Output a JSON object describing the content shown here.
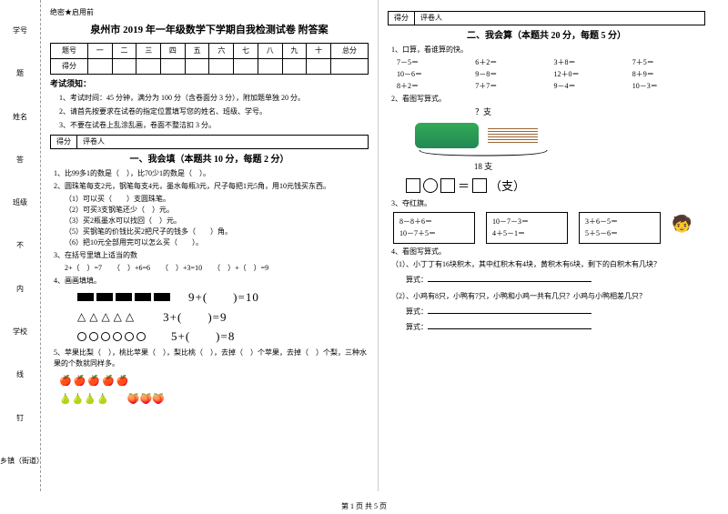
{
  "binding": {
    "xuehao": "学号",
    "xingming": "姓名",
    "banji": "班级",
    "xuexiao": "学校",
    "xiangzhen": "乡镇（街道）",
    "nei": "内",
    "xian": "线",
    "ding": "钉",
    "ti": "题",
    "da": "答",
    "bu": "不"
  },
  "secret": "绝密★启用前",
  "title": "泉州市 2019 年一年级数学下学期自我检测试卷 附答案",
  "score_headers": [
    "题号",
    "一",
    "二",
    "三",
    "四",
    "五",
    "六",
    "七",
    "八",
    "九",
    "十",
    "总分"
  ],
  "score_row": "得分",
  "notice_h": "考试须知：",
  "notices": [
    "1、考试时间：45 分钟，满分为 100 分（含卷面分 3 分），附加题单独 20 分。",
    "2、请首先按要求在试卷的指定位置填写您的姓名、班级、学号。",
    "3、不要在试卷上乱涂乱画，卷面不整洁扣 3 分。"
  ],
  "scorebox": {
    "a": "得分",
    "b": "评卷人"
  },
  "q1_h": "一、我会填（本题共 10 分，每题 2 分）",
  "q1_1": "1、比99多1的数是（　），比70少1的数是（　）。",
  "q1_2": "2、圆珠笔每支2元，钢笔每支4元，墨水每瓶3元，尺子每把1元5角，用10元钱买东西。",
  "q1_2s": [
    "（1）可以买（　　）支圆珠笔。",
    "（2）可买3支钢笔还少（　）元。",
    "（3）买2瓶墨水可以找回（　）元。",
    "（5）买钢笔的价钱比买2把尺子的钱多（　　）角。",
    "（6）把10元全部用完可以怎么买（　　）。"
  ],
  "q1_3": "3、在括号里填上适当的数",
  "q1_3e": "2+（　）=7　　（　）+6=6　　（　）+3=10　　（　）+（　）=9",
  "q1_4": "4、画画填填。",
  "eq1": "9+(　　)=10",
  "eq2": "3+(　　)=9",
  "eq3": "5+(　　)=8",
  "q1_5": "5、苹果比梨（　），桃比苹果（　），梨比桃（　），去掉（　）个苹果，去掉（　）个梨，三种水果的个数就同样多。",
  "q2_h": "二、我会算（本题共 20 分，每题 5 分）",
  "q2_1": "1、口算，看谁算的快。",
  "kousuan": [
    "7－5＝",
    "6＋2＝",
    "3＋8＝",
    "7＋5＝",
    "10－6＝",
    "9－8＝",
    "12＋0＝",
    "8＋9＝",
    "8＋2＝",
    "7＋7＝",
    "9－4＝",
    "10－3＝"
  ],
  "q2_2": "2、看图写算式。",
  "q2_2_top": "？支",
  "q2_2_bot": "18 支",
  "q2_2_unit": "（支）",
  "q2_3": "3、夺红旗。",
  "flag1": [
    "8－8＋6＝",
    "10－7＋5＝"
  ],
  "flag2": [
    "10－7－3＝",
    "4＋5－1＝"
  ],
  "flag3": [
    "3＋6－5＝",
    "5＋5－6＝"
  ],
  "q2_4": "4、看图写算式。",
  "q2_4_1": "（1）、小丁丁有16块积木，其中红积木有4块，黄积木有6块，剩下的白积木有几块？",
  "q2_4_2": "（2）、小鸡有8只，小鸭有7只，小鸭和小鸡一共有几只？小鸡与小鸭相差几只？",
  "suanshi": "算式：",
  "footer": "第 1 页 共 5 页"
}
